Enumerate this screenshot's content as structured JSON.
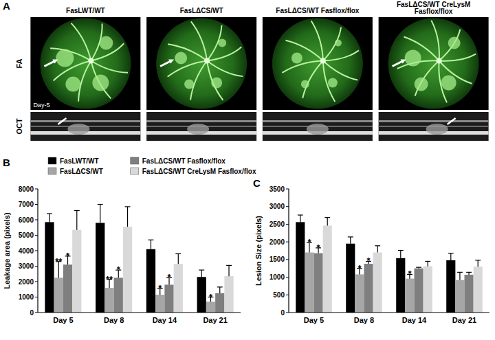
{
  "panel_a": {
    "letter": "A",
    "columns": [
      "FasLWT/WT",
      "FasLΔCS/WT",
      "FasLΔCS/WT Fasflox/flox",
      "FasLΔCS/WT CreLysM Fasflox/flox"
    ],
    "rows": [
      "FA",
      "OCT"
    ],
    "annotation": "Day-5"
  },
  "chart_data": [
    {
      "type": "bar",
      "panel_label": "B",
      "y_label": "Leakage area (pixels)",
      "categories": [
        "Day 5",
        "Day 8",
        "Day 14",
        "Day 21"
      ],
      "series": [
        {
          "name": "FasLWT/WT",
          "color": "#000000",
          "values": [
            5850,
            5800,
            4100,
            2300
          ],
          "errors": [
            550,
            1200,
            600,
            450
          ],
          "annotations": [
            null,
            null,
            null,
            null
          ]
        },
        {
          "name": "FasLΔCS/WT",
          "color": "#a6a6a6",
          "values": [
            2250,
            1600,
            1150,
            700
          ],
          "errors": [
            1050,
            550,
            400,
            300
          ],
          "annotations": [
            "**",
            "**",
            "*",
            "*"
          ]
        },
        {
          "name": "FasLΔCS/WT Fasflox/flox",
          "color": "#7f7f7f",
          "values": [
            3100,
            2250,
            1800,
            1250
          ],
          "errors": [
            550,
            500,
            450,
            400
          ],
          "annotations": [
            "*",
            "*",
            "*",
            null
          ]
        },
        {
          "name": "FasLΔCS/WT CreLysM Fasflox/flox",
          "color": "#d9d9d9",
          "values": [
            5350,
            5550,
            3150,
            2350
          ],
          "errors": [
            1250,
            1300,
            650,
            700
          ],
          "annotations": [
            null,
            null,
            null,
            null
          ]
        }
      ],
      "ylim": [
        0,
        8000
      ],
      "yticks": [
        0,
        1000,
        2000,
        3000,
        4000,
        5000,
        6000,
        7000,
        8000
      ],
      "legend": "top",
      "grid": false
    },
    {
      "type": "bar",
      "panel_label": "C",
      "y_label": "Lesion Size (pixels)",
      "categories": [
        "Day 5",
        "Day 8",
        "Day 14",
        "Day 21"
      ],
      "series": [
        {
          "color": "#000000",
          "values": [
            2560,
            1950,
            1540,
            1480
          ],
          "errors": [
            200,
            190,
            220,
            200
          ],
          "annotations": [
            null,
            null,
            null,
            null
          ]
        },
        {
          "color": "#a6a6a6",
          "values": [
            1700,
            1080,
            960,
            920
          ],
          "errors": [
            280,
            170,
            120,
            220
          ],
          "annotations": [
            "*",
            "*",
            "*",
            null
          ]
        },
        {
          "color": "#7f7f7f",
          "values": [
            1680,
            1380,
            1250,
            1070
          ],
          "errors": [
            150,
            70,
            30,
            70
          ],
          "annotations": [
            "*",
            "*",
            null,
            null
          ]
        },
        {
          "color": "#d9d9d9",
          "values": [
            2460,
            1700,
            1310,
            1300
          ],
          "errors": [
            230,
            190,
            140,
            180
          ],
          "annotations": [
            null,
            null,
            null,
            null
          ]
        }
      ],
      "ylim": [
        0,
        3500
      ],
      "yticks": [
        0,
        500,
        1000,
        1500,
        2000,
        2500,
        3000,
        3500
      ],
      "grid": false
    }
  ]
}
